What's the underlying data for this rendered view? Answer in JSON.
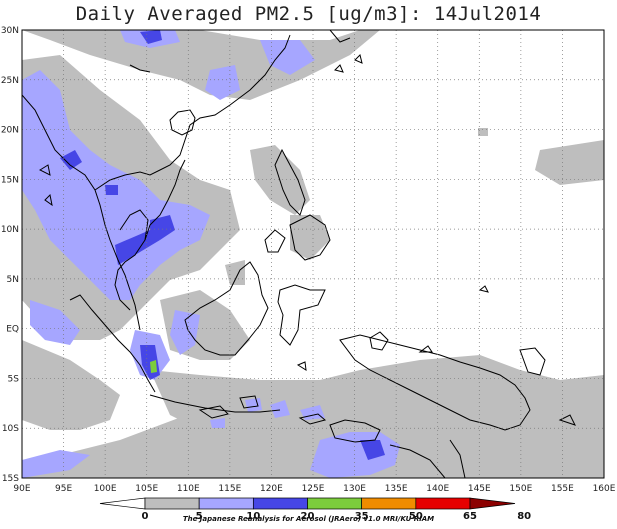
{
  "title": "Daily Averaged PM2.5 [ug/m3]: 14Jul2014",
  "lat_labels": [
    "30N",
    "25N",
    "20N",
    "15N",
    "10N",
    "5N",
    "EQ",
    "5S",
    "10S",
    "15S"
  ],
  "lon_labels": [
    "90E",
    "95E",
    "100E",
    "105E",
    "110E",
    "115E",
    "120E",
    "125E",
    "130E",
    "135E",
    "140E",
    "145E",
    "150E",
    "155E",
    "160E"
  ],
  "colorbar": {
    "ticks": [
      "0",
      "5",
      "10",
      "20",
      "35",
      "50",
      "65",
      "80"
    ],
    "colors": [
      "#ffffff",
      "#bebebe",
      "#a6a6ff",
      "#4646e6",
      "#7ccd3c",
      "#f08c00",
      "#e60000",
      "#8c0000"
    ]
  },
  "credit": "The Japanese Reanalysis for Aerosol (JRAero) v1.0 MRI/KU RIAM"
}
